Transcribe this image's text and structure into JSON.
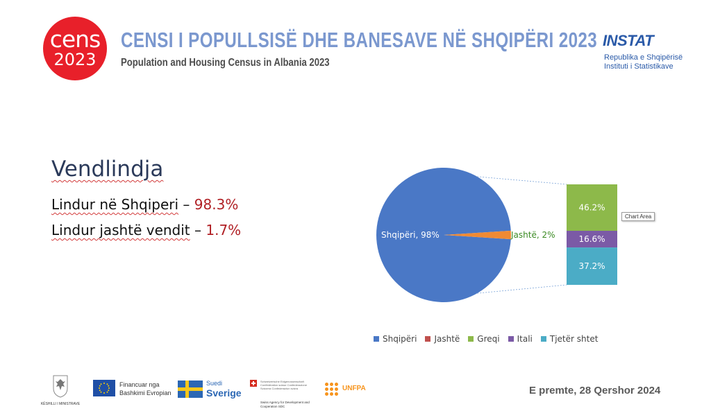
{
  "header": {
    "logo_line1": "cens",
    "logo_line2": "2023",
    "title": "CENSI I POPULLSISË DHE BANESAVE NË SHQIPËRI 2023",
    "subtitle": "Population and Housing Census in Albania 2023",
    "instat_name": "INSTAT",
    "instat_line1": "Republika e Shqipërisë",
    "instat_line2": "Instituti i Statistikave"
  },
  "content": {
    "heading": "Vendlindja",
    "stats": [
      {
        "label": "Lindur në Shqiperi",
        "sep": " – ",
        "value": "98.3%"
      },
      {
        "label": "Lindur jashtë vendit",
        "sep": " – ",
        "value": "1.7%"
      }
    ]
  },
  "chart_data": {
    "type": "pie",
    "subtype": "bar-of-pie",
    "slices": [
      {
        "label": "Shqipëri",
        "value": 98,
        "display": "Shqipëri, 98%",
        "color": "#4a78c6"
      },
      {
        "label": "Jashtë",
        "value": 2,
        "display": "Jashtë, 2%",
        "color": "#f08a34"
      }
    ],
    "bar_breakdown_of": "Jashtë",
    "bar_segments": [
      {
        "label": "Greqi",
        "value": 46.2,
        "display": "46.2%",
        "color": "#8db94a"
      },
      {
        "label": "Itali",
        "value": 16.6,
        "display": "16.6%",
        "color": "#7b5aa6"
      },
      {
        "label": "Tjetër shtet",
        "value": 37.2,
        "display": "37.2%",
        "color": "#4bacc6"
      }
    ],
    "legend": [
      {
        "label": "Shqipëri",
        "color": "#4a78c6"
      },
      {
        "label": "Jashtë",
        "color": "#c0504d"
      },
      {
        "label": "Greqi",
        "color": "#8db94a"
      },
      {
        "label": "Itali",
        "color": "#7b5aa6"
      },
      {
        "label": "Tjetër shtet",
        "color": "#4bacc6"
      }
    ],
    "legend_position": "bottom",
    "label_colors": {
      "main": "#ffffff",
      "secondary": "#3a8a22",
      "bar": "#ffffff"
    },
    "tooltip": "Chart Area"
  },
  "footer": {
    "date": "E premte, 28 Qershor 2024",
    "emblem_caption": "KËSHILLI I MINISTRAVE",
    "eu_line1": "Financuar nga",
    "eu_line2": "Bashkimi Evropian",
    "se_line1": "Suedi",
    "se_line2": "Sverige",
    "ch_text": "Schweizerische Eidgenossenschaft Confédération suisse Confederazione Svizzera Confederaziun svizra",
    "ch_sub": "Swiss Agency for Development and Cooperation SDC",
    "unfpa": "UNFPA"
  }
}
